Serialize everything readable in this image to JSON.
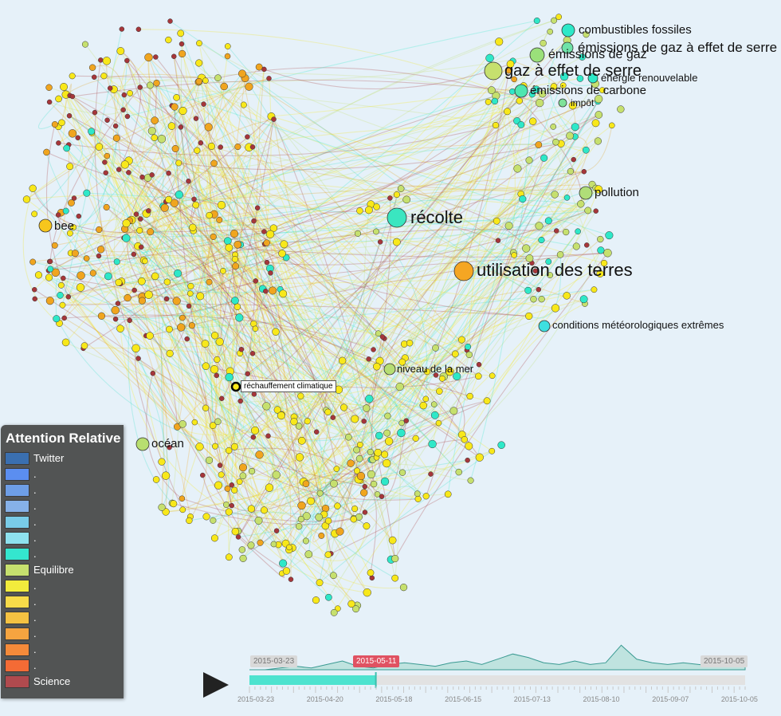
{
  "graph": {
    "labels": {
      "combustibles": "combustibles fossiles",
      "emissions_ges": "émissions de gaz à effet de serre",
      "emissions_gaz": "émissions de gaz",
      "gaz_serre": "gaz à effet de serre",
      "energie": "énergie renouvelable",
      "emissions_carbone": "émissions de carbone",
      "impot": "impôt",
      "pollution": "pollution",
      "recolte": "récolte",
      "utilisation": "utilisation des terres",
      "conditions": "conditions météorologiques extrêmes",
      "niveau_mer": "niveau de la mer",
      "bee": "bee",
      "ocean": "océan"
    },
    "hovered_node": "réchauffement climatique"
  },
  "legend": {
    "title": "Attention Relative",
    "items": [
      {
        "label": "Twitter",
        "color": "#3a6fb0"
      },
      {
        "label": ".",
        "color": "#5b8ef0"
      },
      {
        "label": ".",
        "color": "#6e9ee6"
      },
      {
        "label": ".",
        "color": "#86b1e8"
      },
      {
        "label": ".",
        "color": "#79cce8"
      },
      {
        "label": ".",
        "color": "#8ee1ee"
      },
      {
        "label": ".",
        "color": "#34e6cf"
      },
      {
        "label": "Equilibre",
        "color": "#c6e06e"
      },
      {
        "label": ".",
        "color": "#f2ec3c"
      },
      {
        "label": ".",
        "color": "#f7db49"
      },
      {
        "label": ".",
        "color": "#f5c242"
      },
      {
        "label": ".",
        "color": "#f5a440"
      },
      {
        "label": ".",
        "color": "#f48a3a"
      },
      {
        "label": ".",
        "color": "#f46b35"
      },
      {
        "label": "Science",
        "color": "#b04a4e"
      }
    ]
  },
  "timeline": {
    "start_tag": "2015-03-23",
    "current_tag": "2015-05-11",
    "end_tag": "2015-10-05",
    "progress": 0.255,
    "ticks": [
      "2015-03-23",
      "2015-04-20",
      "2015-05-18",
      "2015-06-15",
      "2015-07-13",
      "2015-08-10",
      "2015-09-07",
      "2015-10-05"
    ]
  },
  "colors": {
    "science": "#a6363a",
    "orange": "#f0a51f",
    "yellow": "#f8e81a",
    "lime": "#c6e06e",
    "cyan": "#2ee8c8",
    "teal_accent": "#4de3cf",
    "background": "#e6f1f9"
  }
}
